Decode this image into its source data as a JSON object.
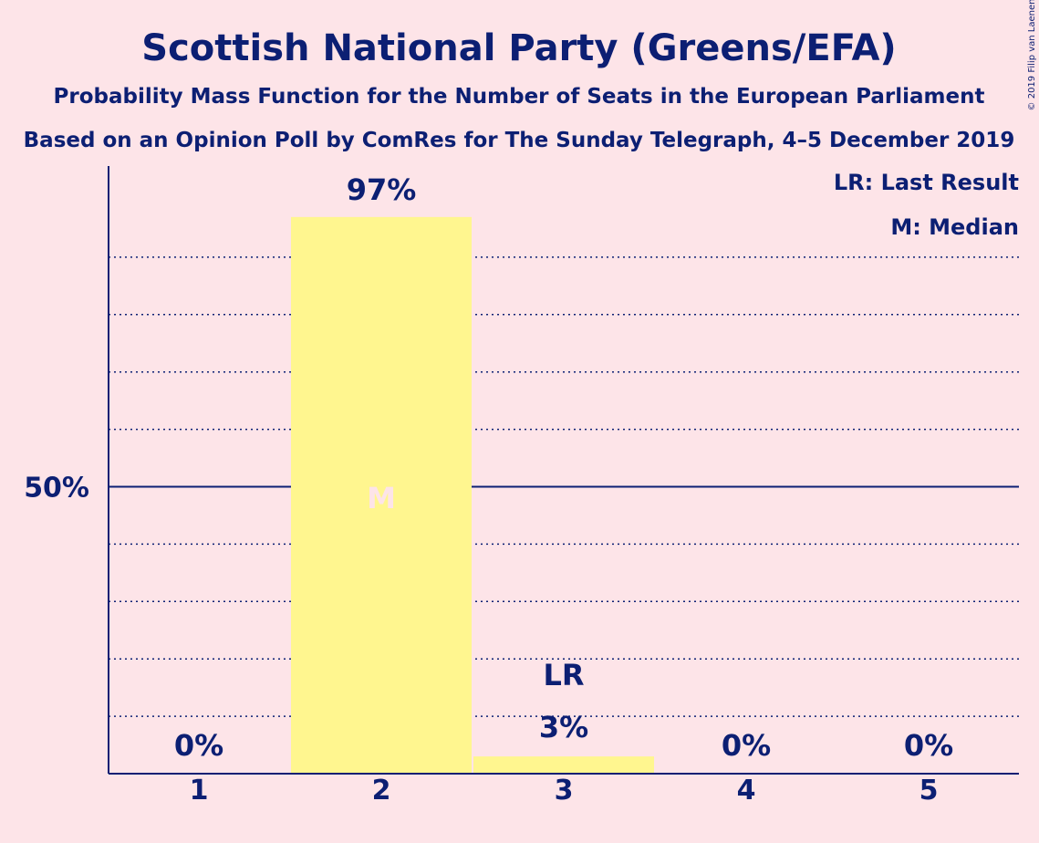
{
  "title": "Scottish National Party (Greens/EFA)",
  "subtitle1": "Probability Mass Function for the Number of Seats in the European Parliament",
  "subtitle2": "Based on an Opinion Poll by ComRes for The Sunday Telegraph, 4–5 December 2019",
  "copyright": "© 2019 Filip van Laenen",
  "legend": {
    "last_result": "LR: Last Result",
    "median": "M: Median"
  },
  "colors": {
    "background": "#fde4e8",
    "bar": "#fff68f",
    "axis": "#0c1f73",
    "median_marker": "#fde4e8"
  },
  "chart_data": {
    "type": "bar",
    "categories": [
      "1",
      "2",
      "3",
      "4",
      "5"
    ],
    "values": [
      0,
      97,
      3,
      0,
      0
    ],
    "value_labels": [
      "0%",
      "97%",
      "3%",
      "0%",
      "0%"
    ],
    "ylim": [
      0,
      100
    ],
    "y_ticks": [
      {
        "value": 50,
        "label": "50%"
      }
    ],
    "gridlines": [
      10,
      20,
      30,
      40,
      60,
      70,
      80,
      90
    ],
    "median_index": 1,
    "median_marker": "M",
    "last_result_index": 2,
    "last_result_marker": "LR",
    "title": "Scottish National Party (Greens/EFA)",
    "xlabel": "",
    "ylabel": ""
  }
}
